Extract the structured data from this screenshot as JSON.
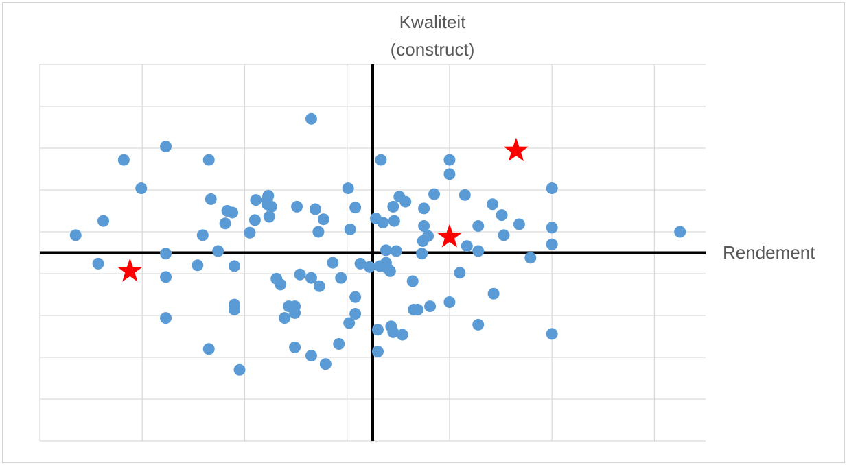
{
  "chart_data": {
    "type": "scatter",
    "title": "",
    "xlabel": "Rendement",
    "ylabel_lines": [
      "Kwaliteit",
      "(construct)"
    ],
    "xlim": [
      -3.25,
      3.25
    ],
    "ylim": [
      -2.25,
      2.25
    ],
    "grid": true,
    "grid_step": 1,
    "tick_labels_shown": false,
    "colors": {
      "points": "#5b9bd5",
      "highlight": "#ff0000",
      "axes": "#000000",
      "grid": "#d9d9d9",
      "label": "#595959"
    },
    "series": [
      {
        "marker": "circle",
        "points": [
          [
            -2.9,
            0.21
          ],
          [
            -2.63,
            0.38
          ],
          [
            -2.68,
            -0.13
          ],
          [
            -2.43,
            1.11
          ],
          [
            -2.26,
            0.77
          ],
          [
            -2.02,
            1.27
          ],
          [
            -2.02,
            -0.01
          ],
          [
            -2.02,
            -0.29
          ],
          [
            -2.02,
            -0.78
          ],
          [
            -1.66,
            0.21
          ],
          [
            -1.71,
            -0.15
          ],
          [
            -1.6,
            -1.15
          ],
          [
            -1.6,
            1.11
          ],
          [
            -1.58,
            0.64
          ],
          [
            -1.51,
            0.02
          ],
          [
            -1.44,
            0.35
          ],
          [
            -1.42,
            0.5
          ],
          [
            -1.37,
            0.48
          ],
          [
            -1.35,
            -0.16
          ],
          [
            -1.35,
            -0.62
          ],
          [
            -1.35,
            -0.68
          ],
          [
            -1.3,
            -1.4
          ],
          [
            -1.2,
            0.24
          ],
          [
            -1.15,
            0.39
          ],
          [
            -1.14,
            0.63
          ],
          [
            -1.03,
            0.58
          ],
          [
            -1.03,
            0.64
          ],
          [
            -1.02,
            0.68
          ],
          [
            -1.01,
            0.43
          ],
          [
            -0.99,
            0.55
          ],
          [
            -0.94,
            -0.31
          ],
          [
            -0.9,
            -0.38
          ],
          [
            -0.86,
            -0.78
          ],
          [
            -0.82,
            -0.64
          ],
          [
            -0.76,
            -0.64
          ],
          [
            -0.76,
            -0.72
          ],
          [
            -0.76,
            -1.13
          ],
          [
            -0.74,
            0.55
          ],
          [
            -0.71,
            -0.26
          ],
          [
            -0.6,
            1.6
          ],
          [
            -0.6,
            -0.3
          ],
          [
            -0.6,
            -1.23
          ],
          [
            -0.56,
            0.52
          ],
          [
            -0.53,
            0.25
          ],
          [
            -0.52,
            -0.4
          ],
          [
            -0.48,
            0.4
          ],
          [
            -0.46,
            -1.33
          ],
          [
            -0.39,
            -0.12
          ],
          [
            -0.33,
            -1.09
          ],
          [
            -0.31,
            -0.3
          ],
          [
            -0.24,
            0.77
          ],
          [
            -0.22,
            0.28
          ],
          [
            -0.17,
            0.54
          ],
          [
            -0.17,
            -0.53
          ],
          [
            -0.17,
            -0.73
          ],
          [
            -0.23,
            -0.84
          ],
          [
            -0.12,
            -0.13
          ],
          [
            -0.03,
            -0.17
          ],
          [
            0.03,
            0.41
          ],
          [
            0.05,
            -0.92
          ],
          [
            0.05,
            -1.18
          ],
          [
            0.07,
            -0.16
          ],
          [
            0.08,
            1.11
          ],
          [
            0.1,
            0.36
          ],
          [
            0.13,
            0.03
          ],
          [
            0.13,
            -0.12
          ],
          [
            0.14,
            -0.18
          ],
          [
            0.17,
            -0.22
          ],
          [
            0.18,
            -0.88
          ],
          [
            0.2,
            -0.95
          ],
          [
            0.2,
            0.55
          ],
          [
            0.21,
            0.38
          ],
          [
            0.23,
            0.02
          ],
          [
            0.26,
            0.67
          ],
          [
            0.29,
            -0.98
          ],
          [
            0.32,
            0.61
          ],
          [
            0.39,
            -0.34
          ],
          [
            0.4,
            -0.68
          ],
          [
            0.44,
            -0.68
          ],
          [
            0.48,
            -0.01
          ],
          [
            0.49,
            0.14
          ],
          [
            0.5,
            0.53
          ],
          [
            0.5,
            0.32
          ],
          [
            0.54,
            0.2
          ],
          [
            0.56,
            -0.64
          ],
          [
            0.6,
            0.7
          ],
          [
            0.75,
            1.11
          ],
          [
            0.75,
            0.94
          ],
          [
            0.75,
            -0.59
          ],
          [
            0.85,
            -0.24
          ],
          [
            0.9,
            0.69
          ],
          [
            0.92,
            0.08
          ],
          [
            1.03,
            0.32
          ],
          [
            1.03,
            0.02
          ],
          [
            1.03,
            -0.86
          ],
          [
            1.17,
            0.58
          ],
          [
            1.18,
            -0.49
          ],
          [
            1.28,
            0.21
          ],
          [
            1.26,
            0.45
          ],
          [
            1.43,
            0.34
          ],
          [
            1.54,
            -0.06
          ],
          [
            1.75,
            0.77
          ],
          [
            1.75,
            0.3
          ],
          [
            1.75,
            0.1
          ],
          [
            1.75,
            -0.97
          ],
          [
            3.0,
            0.25
          ]
        ]
      },
      {
        "marker": "star",
        "points": [
          [
            -2.37,
            -0.22
          ],
          [
            0.75,
            0.19
          ],
          [
            1.4,
            1.22
          ]
        ]
      }
    ]
  }
}
